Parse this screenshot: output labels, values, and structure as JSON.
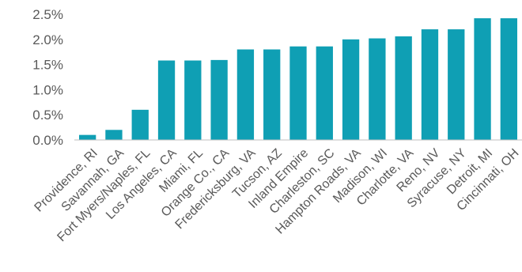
{
  "chart_data": {
    "type": "bar",
    "categories": [
      "Providence, RI",
      "Savannah, GA",
      "Fort Myers/Naples, FL",
      "Los Angeles, CA",
      "Miami, FL",
      "Orange Co., CA",
      "Fredericksburg, VA",
      "Tucson, AZ",
      "Inland Empire",
      "Charleston, SC",
      "Hampton Roads, VA",
      "Madison, WI",
      "Charlotte, VA",
      "Reno, NV",
      "Syracuse, NY",
      "Detroit, MI",
      "Cincinnati, OH"
    ],
    "values": [
      0.1,
      0.2,
      0.6,
      1.58,
      1.58,
      1.59,
      1.8,
      1.8,
      1.86,
      1.86,
      2.0,
      2.02,
      2.06,
      2.2,
      2.2,
      2.42,
      2.42
    ],
    "y_ticks": [
      "0.0%",
      "0.5%",
      "1.0%",
      "1.5%",
      "2.0%",
      "2.5%"
    ],
    "ylim": [
      0,
      2.5
    ],
    "unit": "%",
    "grid": false,
    "colors": {
      "bar": "#0f9fb4",
      "text": "#595959",
      "axis": "#bfbfbf"
    }
  }
}
